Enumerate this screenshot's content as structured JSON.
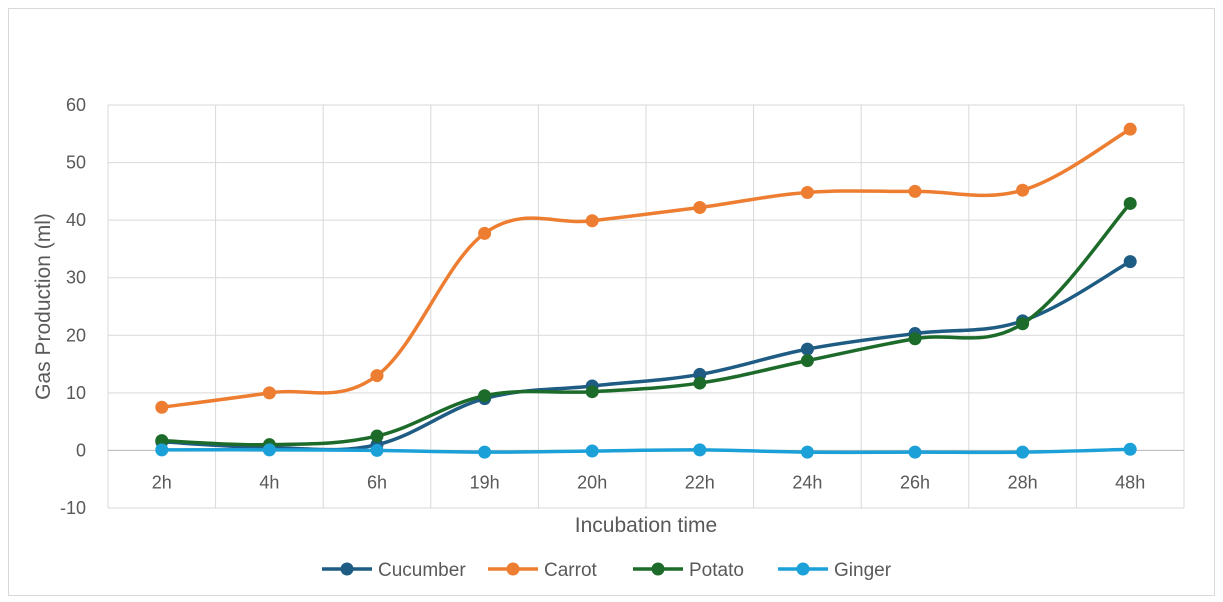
{
  "chart_data": {
    "type": "line",
    "title": "",
    "xlabel": "Incubation time",
    "ylabel": "Gas Production  (ml)",
    "categories": [
      "2h",
      "4h",
      "6h",
      "19h",
      "20h",
      "22h",
      "24h",
      "26h",
      "28h",
      "48h"
    ],
    "ylim": [
      -10,
      60
    ],
    "yticks": [
      -10,
      0,
      10,
      20,
      30,
      40,
      50,
      60
    ],
    "grid": true,
    "legend_position": "bottom",
    "smooth": true,
    "series": [
      {
        "name": "Cucumber",
        "color": "#1f5c84",
        "values": [
          1.5,
          0.5,
          1.0,
          9.0,
          11.2,
          13.2,
          17.6,
          20.3,
          22.5,
          32.8
        ]
      },
      {
        "name": "Carrot",
        "color": "#ed7d31",
        "values": [
          7.5,
          10.0,
          13.0,
          37.7,
          39.9,
          42.2,
          44.8,
          45.0,
          45.2,
          55.8
        ]
      },
      {
        "name": "Potato",
        "color": "#1d6b2a",
        "values": [
          1.7,
          1.0,
          2.5,
          9.5,
          10.2,
          11.7,
          15.6,
          19.4,
          22.0,
          42.9
        ]
      },
      {
        "name": "Ginger",
        "color": "#1ca0d8",
        "values": [
          0.1,
          0.1,
          0.0,
          -0.3,
          -0.1,
          0.1,
          -0.3,
          -0.3,
          -0.3,
          0.2
        ]
      }
    ]
  }
}
